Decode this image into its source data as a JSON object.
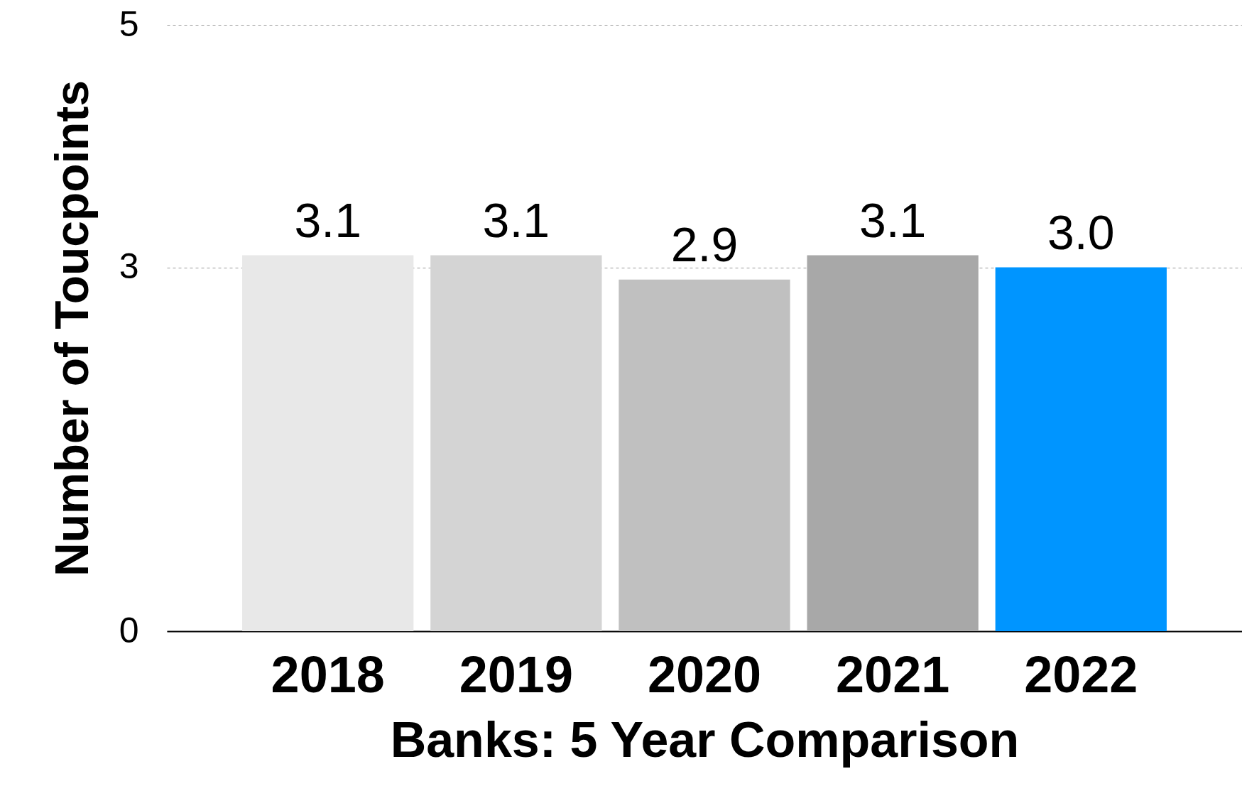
{
  "chart_data": {
    "type": "bar",
    "xlabel": "Banks: 5 Year Comparison",
    "ylabel": "Number of Toucpoints",
    "categories": [
      "2018",
      "2019",
      "2020",
      "2021",
      "2022"
    ],
    "values": [
      3.1,
      3.1,
      2.9,
      3.1,
      3.0
    ],
    "value_labels": [
      "3.1",
      "3.1",
      "2.9",
      "3.1",
      "3.0"
    ],
    "colors": [
      "#e8e8e8",
      "#d4d4d4",
      "#c0c0c0",
      "#a8a8a8",
      "#0095ff"
    ],
    "ylim": [
      0,
      5
    ],
    "yticks": [
      0,
      3,
      5
    ],
    "grid": "y"
  }
}
